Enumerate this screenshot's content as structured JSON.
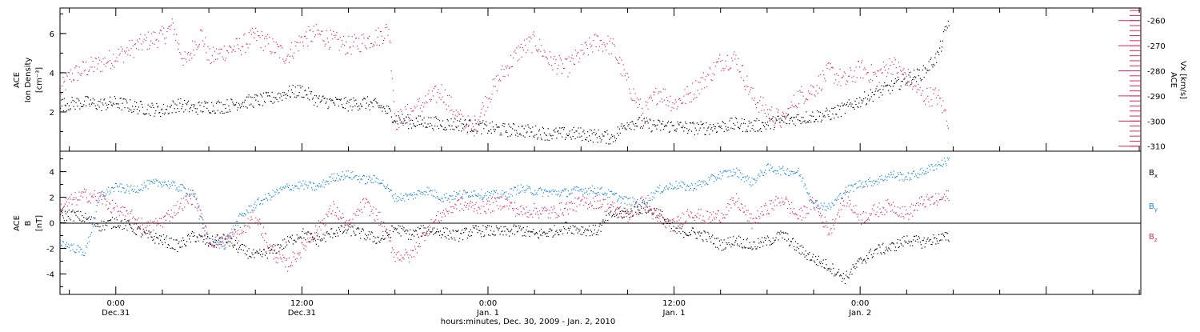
{
  "chart_data": [
    {
      "type": "scatter",
      "panel": "top",
      "ylabel_left_lines": [
        "ACE",
        "Ion Density"
      ],
      "ylabel_left_unit": "[cm⁻³]",
      "ylabel_right_lines": [
        "ACE",
        "Vx [km/s]"
      ],
      "ylim_left": [
        0,
        7.3
      ],
      "ylim_right": [
        -312,
        -255
      ],
      "yticks_left": [
        "2",
        "4",
        "6"
      ],
      "yticks_right": [
        "-260",
        "-270",
        "-280",
        "-290",
        "-300",
        "-310"
      ],
      "grid": false,
      "series": [
        {
          "name": "",
          "axis": "left",
          "color": "#000000",
          "x": [
            -3.6,
            -2,
            -1,
            0,
            1,
            2,
            3,
            4,
            5,
            6,
            7,
            8,
            9,
            10,
            11,
            12,
            13,
            14,
            15,
            16,
            17,
            17.6,
            18,
            19,
            20,
            21,
            22,
            23,
            24,
            25,
            26,
            27,
            28,
            29,
            30,
            31,
            32,
            33,
            34,
            35,
            36,
            37,
            38,
            39,
            40,
            41,
            42,
            43,
            44,
            45,
            46,
            47,
            48,
            49,
            50,
            51,
            52,
            53,
            53.7
          ],
          "y": [
            2.4,
            2.5,
            2.4,
            2.5,
            2.3,
            2.2,
            2.1,
            2.4,
            2.2,
            2.3,
            2.3,
            2.5,
            2.6,
            2.7,
            3.0,
            3.1,
            2.6,
            2.5,
            2.4,
            2.5,
            2.3,
            2.0,
            1.7,
            1.5,
            1.5,
            1.4,
            1.4,
            1.3,
            1.2,
            1.1,
            1.1,
            1.0,
            0.9,
            0.9,
            0.9,
            0.8,
            0.7,
            1.5,
            1.4,
            1.3,
            1.3,
            1.2,
            1.2,
            1.3,
            1.4,
            1.3,
            1.4,
            1.6,
            1.7,
            1.8,
            1.9,
            2.2,
            2.6,
            3.0,
            3.3,
            3.7,
            4.0,
            4.9,
            6.7
          ]
        },
        {
          "name": "",
          "axis": "right",
          "color": "#e0285a",
          "x": [
            -3.6,
            -3,
            -2,
            -1,
            0,
            1,
            2,
            3,
            3.7,
            4,
            4.5,
            5,
            5.5,
            6,
            7,
            8,
            9,
            10,
            11,
            12,
            13,
            14,
            15,
            16,
            17,
            17.6,
            18,
            19,
            20,
            21,
            22,
            23,
            24,
            25,
            26,
            27,
            28,
            29,
            30,
            31,
            32,
            33,
            34,
            35,
            36,
            37,
            38,
            39,
            40,
            41,
            42,
            43,
            44,
            45,
            46,
            47,
            48,
            49,
            50,
            51,
            52,
            53,
            53.7
          ],
          "y": [
            -288,
            -282,
            -279,
            -277,
            -274,
            -271,
            -268,
            -266,
            -262,
            -270,
            -277,
            -270,
            -265,
            -275,
            -272,
            -270,
            -266,
            -270,
            -274,
            -267,
            -265,
            -268,
            -270,
            -268,
            -266,
            -263,
            -300,
            -296,
            -292,
            -288,
            -298,
            -303,
            -290,
            -280,
            -272,
            -268,
            -276,
            -279,
            -273,
            -268,
            -270,
            -285,
            -297,
            -288,
            -293,
            -289,
            -283,
            -276,
            -275,
            -290,
            -296,
            -300,
            -290,
            -287,
            -280,
            -284,
            -279,
            -282,
            -277,
            -282,
            -290,
            -290,
            -300
          ]
        }
      ]
    },
    {
      "type": "scatter",
      "panel": "bottom",
      "ylabel_lines": [
        "ACE",
        "B",
        "[nT]"
      ],
      "ylim": [
        -5.6,
        5.6
      ],
      "yticks": [
        "-4",
        "-2",
        "0",
        "2",
        "4"
      ],
      "grid": false,
      "series": [
        {
          "name": "Bx",
          "color": "#000000",
          "x": [
            -3.6,
            -3,
            -2,
            -1,
            0,
            1,
            2,
            3,
            4,
            5,
            6,
            7,
            8,
            9,
            10,
            11,
            12,
            13,
            14,
            15,
            16,
            17,
            18,
            19,
            20,
            21,
            22,
            23,
            24,
            25,
            26,
            27,
            28,
            29,
            30,
            31,
            32,
            33,
            34,
            35,
            36,
            37,
            38,
            39,
            40,
            41,
            42,
            43,
            44,
            45,
            46,
            47,
            48,
            49,
            50,
            51,
            52,
            53,
            53.7
          ],
          "y": [
            0.5,
            0.7,
            0.4,
            -0.2,
            0.1,
            -0.3,
            -1,
            -1.3,
            -1.8,
            -1,
            -1.5,
            -1.2,
            -2,
            -2.6,
            -2.2,
            -1.5,
            -0.8,
            -1.4,
            -0.7,
            -0.5,
            -0.9,
            -1.3,
            -0.4,
            -0.9,
            -0.5,
            -0.7,
            -1,
            -0.6,
            -0.6,
            -0.7,
            -0.5,
            -0.9,
            -0.7,
            -0.3,
            -0.5,
            -0.6,
            0.7,
            0.8,
            1.2,
            0.8,
            -0.6,
            -0.7,
            -1,
            -1.7,
            -1.3,
            -1.8,
            -1.4,
            -0.9,
            -2,
            -2.8,
            -3.4,
            -4.3,
            -3,
            -2.1,
            -1.9,
            -1.3,
            -1.5,
            -1.2,
            -1.1
          ]
        },
        {
          "name": "By",
          "color": "#1a88e0",
          "x": [
            -3.6,
            -3,
            -2,
            -1,
            0,
            1,
            2,
            3,
            4,
            5,
            6,
            7,
            8,
            9,
            10,
            11,
            12,
            13,
            14,
            15,
            16,
            17,
            18,
            19,
            20,
            21,
            22,
            23,
            24,
            25,
            26,
            27,
            28,
            29,
            30,
            31,
            32,
            33,
            34,
            35,
            36,
            37,
            38,
            39,
            40,
            41,
            42,
            43,
            44,
            45,
            46,
            47,
            48,
            49,
            50,
            51,
            52,
            53,
            53.7
          ],
          "y": [
            -1.5,
            -1.8,
            -2.3,
            2.2,
            2.8,
            2.6,
            3.0,
            3.2,
            2.8,
            2.4,
            -1.5,
            -1.7,
            0.5,
            1.5,
            2.2,
            2.8,
            3.0,
            2.8,
            3.6,
            3.8,
            3.4,
            3.4,
            2.0,
            2.1,
            2.6,
            2.0,
            2.2,
            2.4,
            2.2,
            2.2,
            2.7,
            2.5,
            2.4,
            2.4,
            2.6,
            2.6,
            2.2,
            1.7,
            1.6,
            2.6,
            3.0,
            2.8,
            3.2,
            3.8,
            4.0,
            3.2,
            4.3,
            4.1,
            4.0,
            1.6,
            1.2,
            2.5,
            3.1,
            3.3,
            3.8,
            3.6,
            4.0,
            4.6,
            4.9
          ]
        },
        {
          "name": "Bz",
          "color": "#e0285a",
          "x": [
            -3.6,
            -3,
            -2,
            -1,
            0,
            1,
            2,
            3,
            4,
            5,
            6,
            7,
            8,
            9,
            10,
            11,
            12,
            13,
            14,
            15,
            16,
            17,
            18,
            19,
            20,
            21,
            22,
            23,
            24,
            25,
            26,
            27,
            28,
            29,
            30,
            31,
            32,
            33,
            34,
            35,
            36,
            37,
            38,
            39,
            40,
            41,
            42,
            43,
            44,
            45,
            46,
            47,
            48,
            49,
            50,
            51,
            52,
            53,
            53.7
          ],
          "y": [
            1.2,
            1.7,
            2.2,
            2.0,
            1.0,
            0.5,
            -0.4,
            0.2,
            1.3,
            2.1,
            -1.5,
            -1.3,
            -0.8,
            0.6,
            -2.2,
            -3.3,
            -2.0,
            -0.4,
            1.2,
            -0.3,
            1.6,
            0.3,
            -2.5,
            -2.6,
            -0.6,
            0.7,
            1.5,
            1.3,
            1.3,
            1.7,
            0.9,
            1.0,
            0.8,
            1.2,
            1.6,
            1.7,
            1.2,
            0.6,
            1.7,
            0.2,
            -0.2,
            0.9,
            0.4,
            0.6,
            1.8,
            0.1,
            1.2,
            1.9,
            0.5,
            1.6,
            -0.7,
            2.0,
            0.4,
            1.0,
            1.4,
            0.7,
            1.7,
            1.8,
            2.1
          ]
        }
      ]
    }
  ],
  "x_axis": {
    "range_hours": [
      -3.6,
      66.1
    ],
    "ticks_top_line": [
      "0:00",
      "12:00",
      "0:00",
      "12:00",
      "0:00"
    ],
    "ticks_bottom_line": [
      "Dec.31",
      "Dec.31",
      "Jan. 1",
      "Jan. 1",
      "Jan. 2"
    ],
    "tick_hours": [
      0,
      12,
      24,
      36,
      48
    ],
    "label": "hours:minutes, Dec. 30, 2009 - Jan.  2, 2010"
  },
  "legend": {
    "bx_base": "B",
    "bx_sub": "x",
    "by_base": "B",
    "by_sub": "y",
    "bz_base": "B",
    "bz_sub": "z"
  },
  "labels": {
    "top_left_1": "ACE",
    "top_left_2": "Ion Density",
    "top_left_3": "[cm⁻³]",
    "top_right_1": "ACE",
    "top_right_2": "Vx [km/s]",
    "bottom_left_1": "ACE",
    "bottom_left_2": "B",
    "bottom_left_3": "[nT]"
  }
}
